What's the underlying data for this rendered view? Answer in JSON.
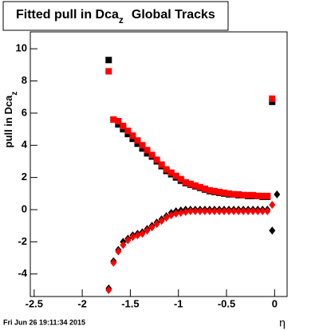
{
  "chart_data": {
    "type": "scatter",
    "title_parts": [
      "Fitted pull in Dca",
      "z",
      "Global Tracks"
    ],
    "ylabel_parts": [
      "pull in Dca",
      "z"
    ],
    "xlabel": "η",
    "xlim": [
      -2.54,
      0.13
    ],
    "ylim": [
      -5.4,
      11.05
    ],
    "xticks": [
      -2.5,
      -2,
      -1.5,
      -1,
      -0.5,
      0
    ],
    "yticks": [
      -4,
      -2,
      0,
      2,
      4,
      6,
      8,
      10
    ],
    "x": [
      -1.725,
      -1.675,
      -1.625,
      -1.575,
      -1.525,
      -1.475,
      -1.425,
      -1.375,
      -1.325,
      -1.275,
      -1.225,
      -1.175,
      -1.125,
      -1.075,
      -1.025,
      -0.975,
      -0.925,
      -0.875,
      -0.825,
      -0.775,
      -0.725,
      -0.675,
      -0.625,
      -0.575,
      -0.525,
      -0.475,
      -0.425,
      -0.375,
      -0.325,
      -0.275,
      -0.225,
      -0.175,
      -0.125,
      -0.075,
      -0.025,
      0.025
    ],
    "series": [
      {
        "color": "#000000",
        "marker": "square",
        "values": [
          9.3,
          5.6,
          5.3,
          5.0,
          4.7,
          4.4,
          4.1,
          3.8,
          3.5,
          3.3,
          3.0,
          2.7,
          2.4,
          2.2,
          2.0,
          1.8,
          1.65,
          1.55,
          1.45,
          1.35,
          1.25,
          1.15,
          1.1,
          1.05,
          1.0,
          0.95,
          0.95,
          0.9,
          0.9,
          0.85,
          0.85,
          0.85,
          0.8,
          0.8,
          6.7,
          null
        ]
      },
      {
        "color": "#ff0000",
        "marker": "square",
        "values": [
          8.6,
          5.6,
          5.5,
          5.2,
          4.9,
          4.6,
          4.3,
          4.0,
          3.7,
          3.4,
          3.1,
          2.8,
          2.5,
          2.3,
          2.1,
          1.9,
          1.7,
          1.6,
          1.5,
          1.4,
          1.3,
          1.2,
          1.15,
          1.1,
          1.05,
          1.0,
          0.95,
          0.95,
          0.9,
          0.9,
          0.9,
          0.85,
          0.85,
          0.85,
          6.9,
          null
        ]
      },
      {
        "color": "#000000",
        "marker": "diamond",
        "values": [
          -4.9,
          -3.2,
          -2.5,
          -2.0,
          -1.8,
          -1.6,
          -1.5,
          -1.4,
          -1.2,
          -1.0,
          -0.8,
          -0.6,
          -0.4,
          -0.2,
          -0.1,
          -0.05,
          0,
          0,
          0,
          0,
          0,
          0,
          0,
          0,
          0,
          0,
          0,
          0,
          0,
          0,
          0,
          0,
          0,
          0,
          -1.3,
          0.95
        ]
      },
      {
        "color": "#ff0000",
        "marker": "diamond",
        "values": [
          -5.0,
          -3.3,
          -2.6,
          -2.2,
          -1.9,
          -1.7,
          -1.6,
          -1.5,
          -1.3,
          -1.1,
          -0.9,
          -0.7,
          -0.5,
          -0.35,
          -0.25,
          -0.2,
          -0.15,
          -0.1,
          -0.1,
          -0.1,
          -0.1,
          -0.1,
          -0.1,
          -0.1,
          -0.1,
          -0.1,
          -0.1,
          -0.1,
          -0.1,
          -0.1,
          -0.1,
          -0.1,
          -0.1,
          -0.1,
          0.3,
          null
        ]
      }
    ]
  },
  "footer": "Fri Jun 26 19:11:34 2015"
}
